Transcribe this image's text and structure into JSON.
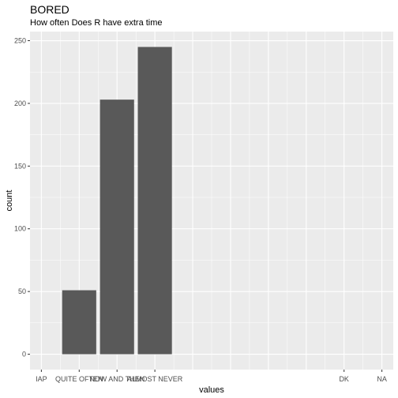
{
  "chart_data": {
    "type": "bar",
    "title": "BORED",
    "subtitle": "How often Does R have extra time",
    "xlabel": "values",
    "ylabel": "count",
    "categories": [
      "IAP",
      "QUITE OFTEN",
      "NOW AND THEN",
      "ALMOST NEVER",
      "DK",
      "NA"
    ],
    "category_x": [
      0,
      1,
      2,
      3,
      8,
      9
    ],
    "xlim": [
      -0.3,
      9.3
    ],
    "values": [
      0,
      51,
      203,
      245,
      0,
      0
    ],
    "ylim": [
      -12.25,
      257.25
    ],
    "yticks": [
      0,
      50,
      100,
      150,
      200,
      250
    ],
    "colors": {
      "panel": "#ebebeb",
      "grid_major": "#ffffff",
      "bar": "#595959",
      "tick_text": "#4d4d4d"
    },
    "grid": true,
    "legend": "none"
  }
}
